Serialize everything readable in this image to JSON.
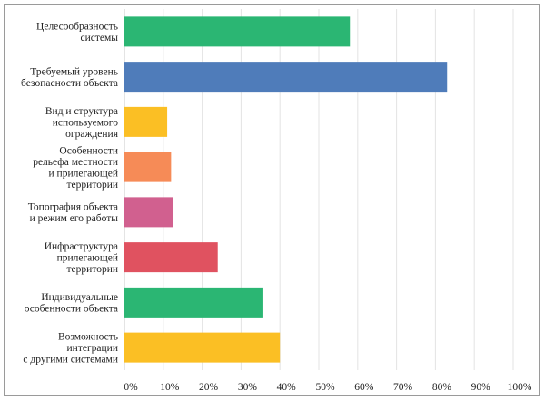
{
  "chart_data": {
    "type": "bar",
    "orientation": "horizontal",
    "title": "",
    "xlabel": "",
    "ylabel": "",
    "xlim": [
      0,
      100
    ],
    "grid": true,
    "legend": "none",
    "categories": [
      [
        "Целесообразность",
        "системы"
      ],
      [
        "Требуемый уровень",
        "безопасности объекта"
      ],
      [
        "Вид и структура",
        "используемого",
        "ограждения"
      ],
      [
        "Особенности",
        "рельефа местности",
        "и прилегающей",
        "территории"
      ],
      [
        "Топография объекта",
        "и режим его работы"
      ],
      [
        "Инфраструктура",
        "прилегающей",
        "территории"
      ],
      [
        "Индивидуальные",
        "особенности объекта"
      ],
      [
        "Возможность",
        "интеграции",
        "с другими системами"
      ]
    ],
    "values": [
      58,
      83,
      11,
      12,
      12.5,
      24,
      35.5,
      40
    ],
    "colors": [
      "#2bb673",
      "#4f7cba",
      "#fbbf24",
      "#f68b57",
      "#d1608f",
      "#e05260",
      "#2bb673",
      "#fbbf24"
    ],
    "ticks": [
      "0%",
      "10%",
      "20%",
      "30%",
      "40%",
      "50%",
      "60%",
      "70%",
      "80%",
      "90%",
      "100%"
    ],
    "tick_values": [
      0,
      10,
      20,
      30,
      40,
      50,
      60,
      70,
      80,
      90,
      100
    ]
  }
}
